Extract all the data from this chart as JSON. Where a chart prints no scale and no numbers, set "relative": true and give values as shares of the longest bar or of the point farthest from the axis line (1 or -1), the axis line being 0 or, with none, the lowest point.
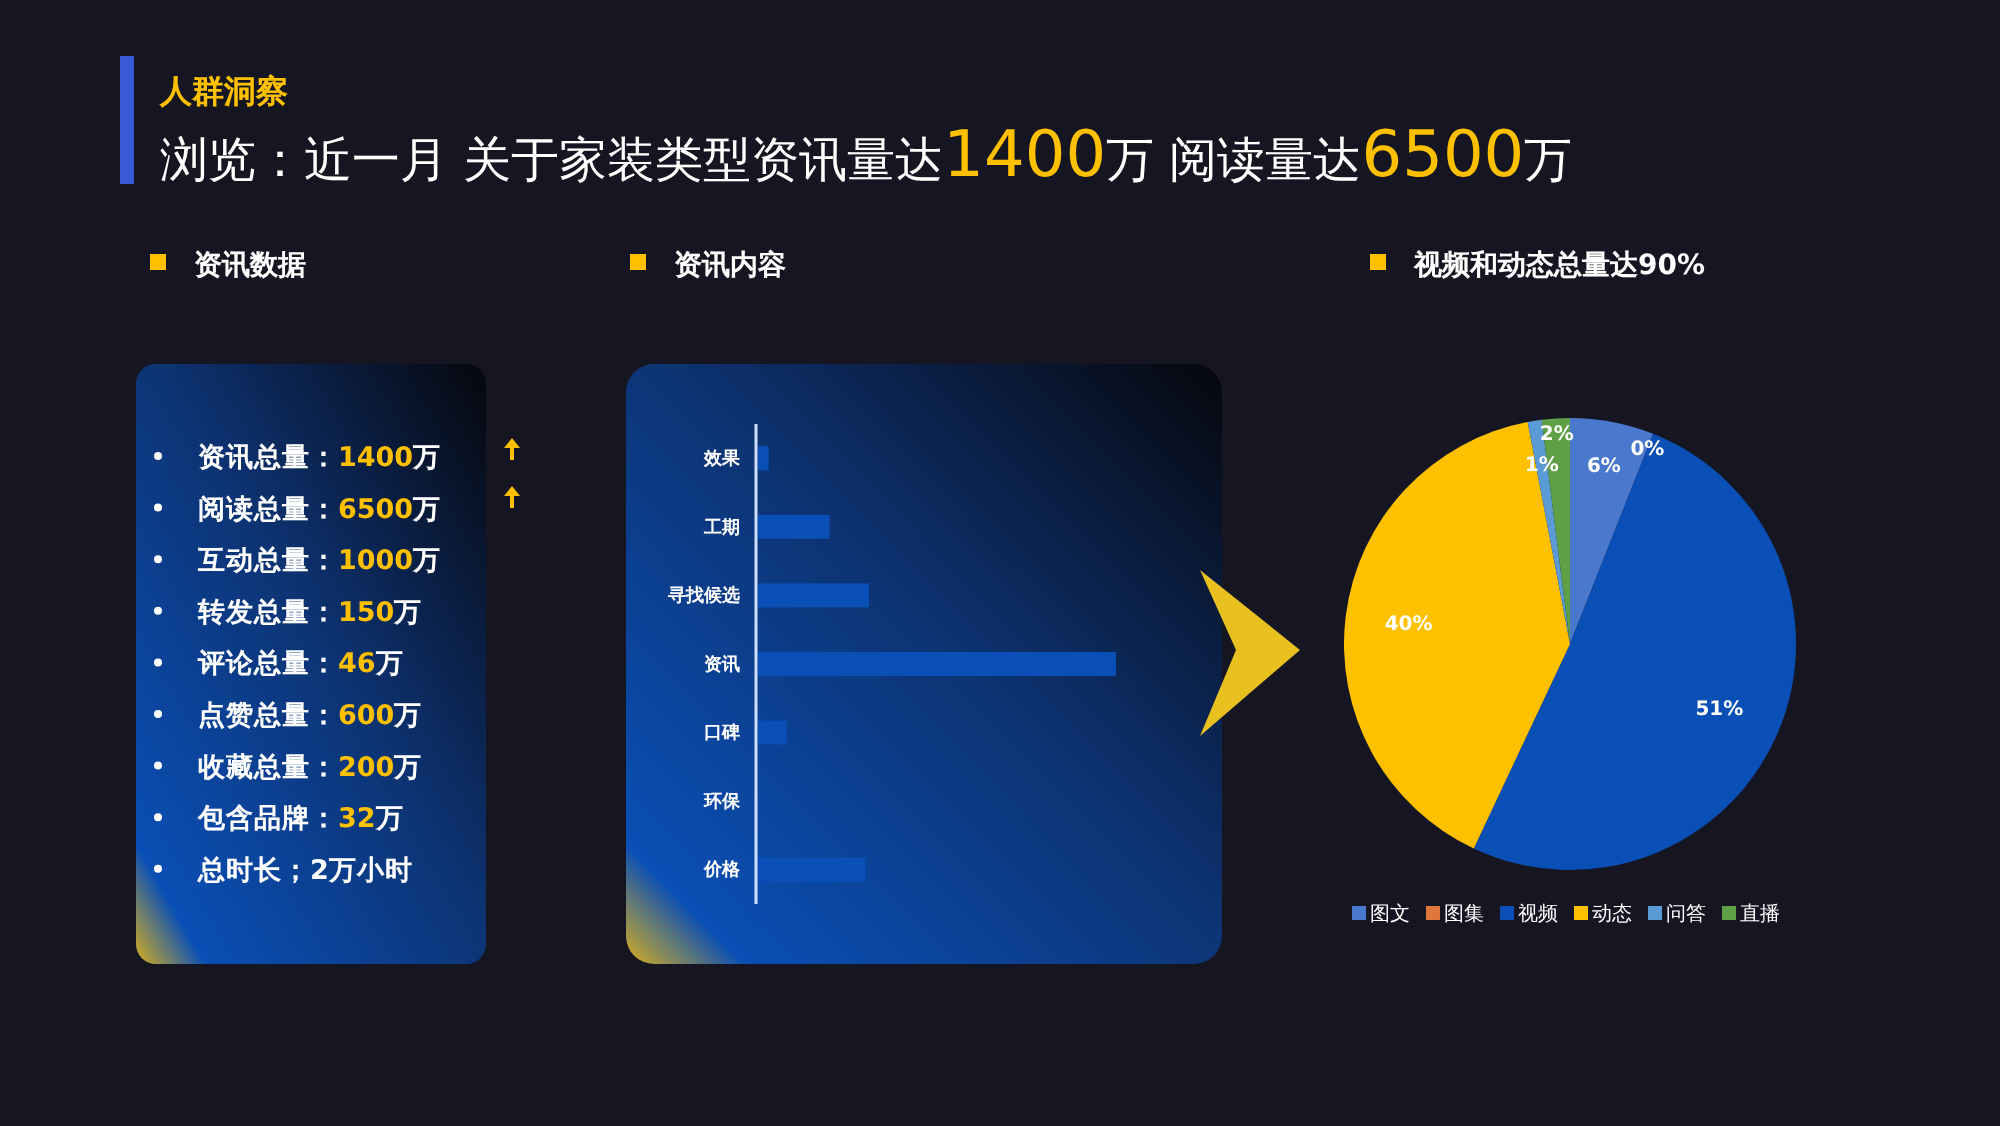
{
  "chart_data": [
    {
      "type": "other",
      "title": "人群洞察",
      "subtitle": "浏览：近一月 关于家装类型资讯量达1400万 阅读量达6500万"
    },
    {
      "type": "other",
      "title": "资讯数据",
      "annotations": [
        "资讯总量：1400万",
        "阅读总量：6500万",
        "互动总量：1000万",
        "转发总量：150万",
        "评论总量：46万",
        "点赞总量：600万",
        "收藏总量：200万",
        "包含品牌：32万",
        "总时长；2万小时"
      ]
    },
    {
      "type": "bar",
      "orientation": "horizontal",
      "relative": true,
      "title": "资讯内容",
      "categories": [
        "效果",
        "工期",
        "寻找候选",
        "资讯",
        "口碑",
        "环保",
        "价格"
      ],
      "values": [
        0.03,
        0.2,
        0.31,
        1,
        0.08,
        0,
        0.3
      ],
      "color": "#0a4fb5"
    },
    {
      "type": "pie",
      "title": "视频和动态总量达90%",
      "categories": [
        "图文",
        "图集",
        "视频",
        "动态",
        "问答",
        "直播"
      ],
      "values": [
        6,
        0,
        51,
        40,
        1,
        2
      ],
      "colors": [
        "#4a78cc",
        "#e0763a",
        "#0a4fb5",
        "#ffc000",
        "#5b9bd5",
        "#5fa046"
      ],
      "value_labels": [
        "6%",
        "0%",
        "51%",
        "40%",
        "1%",
        "2%"
      ],
      "legend": "bottom"
    }
  ]
}
